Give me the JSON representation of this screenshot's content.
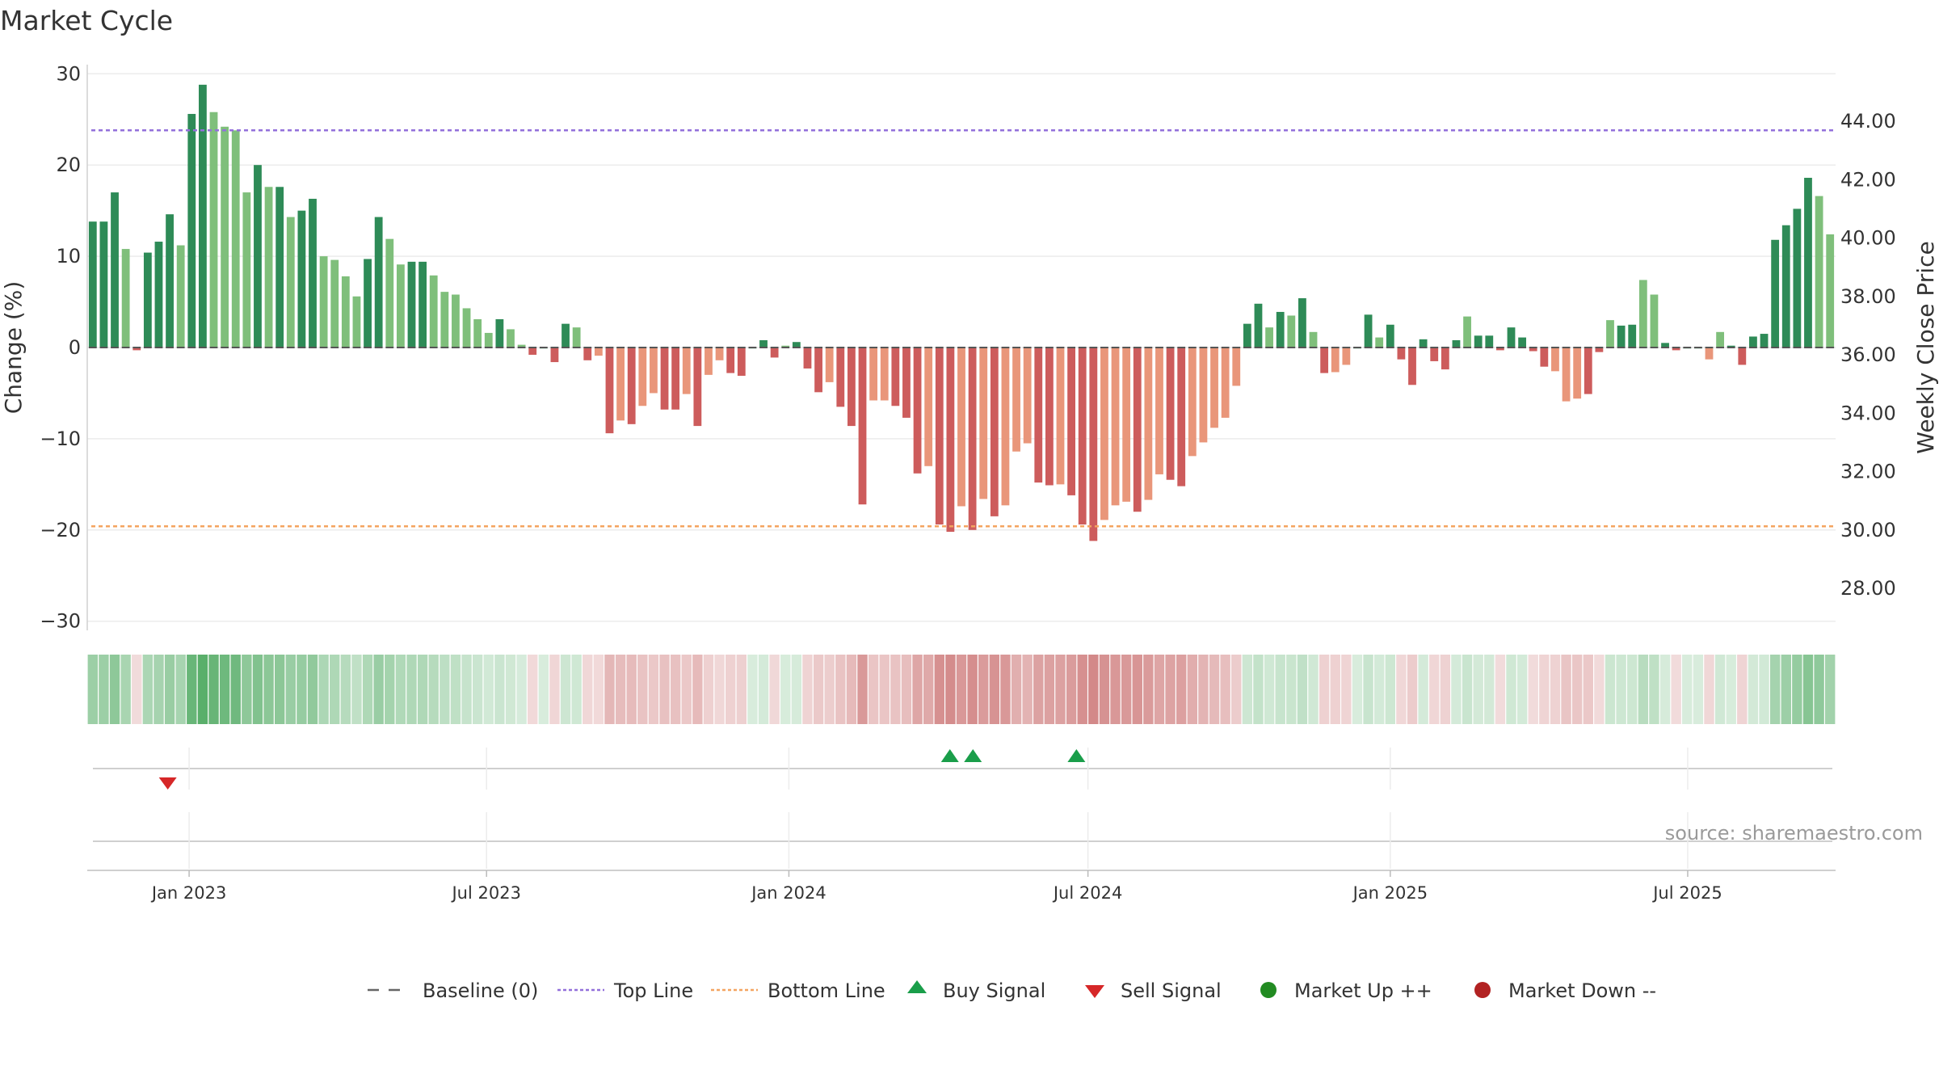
{
  "chart_data": {
    "type": "bar",
    "title": "Market Cycle",
    "ylabel": "Change (%)",
    "y2label": "Weekly Close Price",
    "ylim": [
      -31,
      31
    ],
    "y2lim": [
      26.0,
      45.5
    ],
    "yticks": [
      "30",
      "20",
      "10",
      "0",
      "−10",
      "−20",
      "−30"
    ],
    "y2ticks": [
      "44.00",
      "42.00",
      "40.00",
      "38.00",
      "36.00",
      "34.00",
      "32.00",
      "30.00",
      "28.00"
    ],
    "x_range": [
      "2022-10-31",
      "2025-09-29"
    ],
    "x_ticks": [
      {
        "date": "2023-01-01",
        "label": "Jan 2023"
      },
      {
        "date": "2023-07-01",
        "label": "Jul 2023"
      },
      {
        "date": "2024-01-01",
        "label": "Jan 2024"
      },
      {
        "date": "2024-07-01",
        "label": "Jul 2024"
      },
      {
        "date": "2025-01-01",
        "label": "Jan 2025"
      },
      {
        "date": "2025-07-01",
        "label": "Jul 2025"
      }
    ],
    "baseline": 0,
    "top_line": 23.8,
    "bottom_line": -19.6,
    "colors": {
      "up_strong": "#2e8b57",
      "up_weak": "#7fbf7b",
      "down_strong": "#cd5c5c",
      "down_weak": "#e9967a",
      "top_line": "#9370db",
      "bottom_line": "#f4a460",
      "buy": "#1a9e4a",
      "sell": "#d62728",
      "market_up": "#228b22",
      "market_down": "#b22222"
    },
    "values": [
      13.8,
      13.8,
      17.0,
      10.8,
      -0.3,
      10.4,
      11.6,
      14.6,
      11.2,
      25.6,
      28.8,
      25.8,
      24.2,
      23.8,
      17.0,
      20.0,
      17.6,
      17.6,
      14.3,
      15.0,
      16.3,
      10.0,
      9.6,
      7.8,
      5.6,
      9.7,
      14.3,
      11.9,
      9.1,
      9.4,
      9.4,
      7.9,
      6.1,
      5.8,
      4.3,
      3.1,
      1.6,
      3.1,
      2.0,
      0.3,
      -0.8,
      0,
      -1.6,
      2.6,
      2.2,
      -1.4,
      -0.9,
      -9.4,
      -8.0,
      -8.4,
      -6.4,
      -5.0,
      -6.8,
      -6.8,
      -5.1,
      -8.6,
      -3.0,
      -1.4,
      -2.8,
      -3.1,
      0,
      0.8,
      -1.1,
      0.2,
      0.6,
      -2.3,
      -4.9,
      -3.8,
      -6.5,
      -8.6,
      -17.2,
      -5.8,
      -5.8,
      -6.4,
      -7.7,
      -13.8,
      -13.0,
      -19.4,
      -20.2,
      -17.4,
      -20.0,
      -16.6,
      -18.5,
      -17.3,
      -11.4,
      -10.5,
      -14.8,
      -15.1,
      -15.0,
      -16.2,
      -19.4,
      -21.2,
      -18.9,
      -17.3,
      -16.9,
      -18.0,
      -16.7,
      -13.9,
      -14.5,
      -15.2,
      -11.9,
      -10.4,
      -8.8,
      -7.7,
      -4.2,
      2.6,
      4.8,
      2.2,
      3.9,
      3.5,
      5.4,
      1.7,
      -2.8,
      -2.7,
      -1.9,
      0,
      3.6,
      1.1,
      2.5,
      -1.3,
      -4.1,
      0.9,
      -1.5,
      -2.4,
      0.8,
      3.4,
      1.3,
      1.3,
      -0.3,
      2.2,
      1.1,
      -0.4,
      -2.1,
      -2.6,
      -5.9,
      -5.6,
      -5.1,
      -0.5,
      3.0,
      2.4,
      2.5,
      7.4,
      5.8,
      0.5,
      -0.3,
      0,
      0,
      -1.3,
      1.7,
      0.2,
      -1.9,
      1.2,
      1.5,
      11.8,
      13.4,
      15.2,
      18.6,
      16.6,
      12.4
    ],
    "weak_flags": [
      0,
      0,
      0,
      1,
      0,
      0,
      0,
      0,
      1,
      0,
      0,
      1,
      1,
      1,
      1,
      0,
      1,
      0,
      1,
      0,
      0,
      1,
      1,
      1,
      1,
      0,
      0,
      1,
      1,
      0,
      0,
      1,
      1,
      1,
      1,
      1,
      1,
      0,
      1,
      1,
      0,
      0,
      0,
      0,
      1,
      0,
      1,
      0,
      1,
      0,
      1,
      1,
      0,
      0,
      1,
      0,
      1,
      1,
      0,
      0,
      0,
      0,
      0,
      1,
      0,
      0,
      0,
      1,
      0,
      0,
      0,
      1,
      1,
      0,
      0,
      0,
      1,
      0,
      0,
      1,
      0,
      1,
      0,
      1,
      1,
      1,
      0,
      0,
      1,
      0,
      0,
      0,
      1,
      1,
      1,
      0,
      1,
      1,
      0,
      0,
      1,
      1,
      1,
      1,
      1,
      0,
      0,
      1,
      0,
      1,
      0,
      1,
      0,
      1,
      1,
      0,
      0,
      1,
      0,
      0,
      0,
      0,
      0,
      0,
      0,
      1,
      0,
      0,
      0,
      0,
      0,
      0,
      0,
      1,
      1,
      1,
      0,
      0,
      1,
      0,
      0,
      1,
      1,
      0,
      0,
      0,
      0,
      1,
      1,
      0,
      0,
      0,
      0,
      0,
      0,
      0,
      0,
      1,
      1
    ],
    "buy_signals": [
      "2024-04-08",
      "2024-04-22",
      "2024-06-24"
    ],
    "sell_signals": [
      "2022-12-19"
    ],
    "source": "source: sharemaestro.com",
    "legend": [
      {
        "key": "baseline",
        "label": "Baseline (0)"
      },
      {
        "key": "top",
        "label": "Top Line"
      },
      {
        "key": "bottom",
        "label": "Bottom Line"
      },
      {
        "key": "buy",
        "label": "Buy Signal"
      },
      {
        "key": "sell",
        "label": "Sell Signal"
      },
      {
        "key": "up",
        "label": "Market Up ++"
      },
      {
        "key": "down",
        "label": "Market Down --"
      }
    ],
    "legend_position": "bottom-center",
    "grid": true
  }
}
